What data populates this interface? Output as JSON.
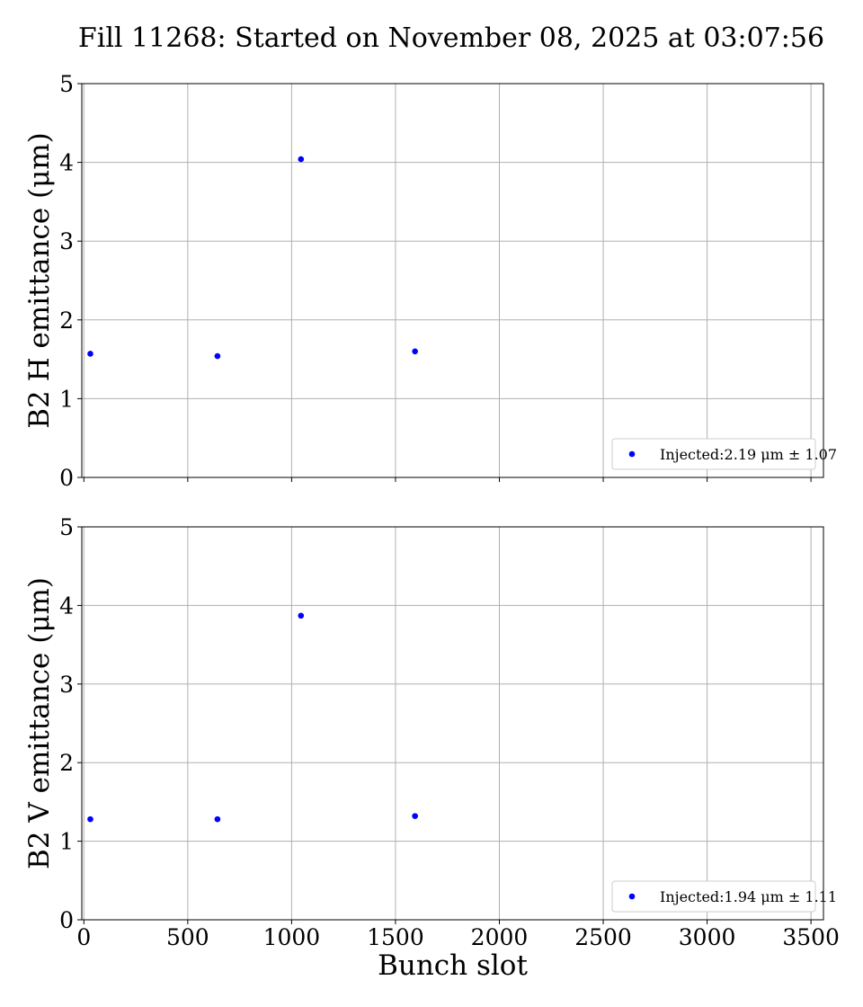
{
  "title": "Fill 11268: Started on November 08, 2025 at 03:07:56",
  "chart_data": [
    {
      "type": "scatter",
      "ylabel": "B2 H emittance (μm)",
      "xlabel": "",
      "xlim": [
        -10,
        3560
      ],
      "ylim": [
        0,
        5
      ],
      "xticks": [
        0,
        500,
        1000,
        1500,
        2000,
        2500,
        3000,
        3500
      ],
      "yticks": [
        0,
        1,
        2,
        3,
        4,
        5
      ],
      "show_xtick_labels": false,
      "grid": true,
      "legend": "bottom-right",
      "series": [
        {
          "name": "Injected:2.19 μm ± 1.07",
          "color": "#0000ff",
          "x": [
            31,
            643,
            1045,
            1594
          ],
          "y": [
            1.57,
            1.54,
            4.04,
            1.6
          ]
        }
      ]
    },
    {
      "type": "scatter",
      "ylabel": "B2 V emittance (μm)",
      "xlabel": "Bunch slot",
      "xlim": [
        -10,
        3560
      ],
      "ylim": [
        0,
        5
      ],
      "xticks": [
        0,
        500,
        1000,
        1500,
        2000,
        2500,
        3000,
        3500
      ],
      "yticks": [
        0,
        1,
        2,
        3,
        4,
        5
      ],
      "show_xtick_labels": true,
      "grid": true,
      "legend": "bottom-right",
      "series": [
        {
          "name": "Injected:1.94 μm ± 1.11",
          "color": "#0000ff",
          "x": [
            31,
            643,
            1045,
            1594
          ],
          "y": [
            1.28,
            1.28,
            3.87,
            1.32
          ]
        }
      ]
    }
  ]
}
